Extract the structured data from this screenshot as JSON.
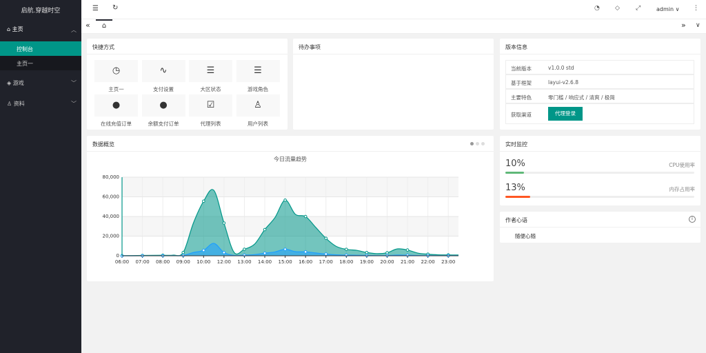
{
  "sidebar": {
    "logo": "启航.穿越时空",
    "menu": [
      {
        "label": "主页",
        "children": [
          "控制台",
          "主页一"
        ]
      },
      {
        "label": "游戏"
      },
      {
        "label": "资料"
      }
    ]
  },
  "header": {
    "user": "admin"
  },
  "quick": {
    "title": "快捷方式",
    "items": [
      "主页一",
      "支付设置",
      "大区状态",
      "游戏角色",
      "在线充值订单",
      "余额支付订单",
      "代理列表",
      "用户列表"
    ]
  },
  "todo": {
    "title": "待办事项"
  },
  "version": {
    "title": "版本信息",
    "rows": [
      [
        "当前版本",
        "v1.0.0 std"
      ],
      [
        "基于框架",
        "layui-v2.6.8"
      ],
      [
        "主要特色",
        "零门槛 / 响应式 / 清爽 / 极简"
      ],
      [
        "获取渠道"
      ]
    ],
    "button": "代理登录"
  },
  "overview": {
    "title": "数据概览"
  },
  "monitor": {
    "title": "实时监控",
    "lim": [
      0,
      100
    ],
    "items": [
      {
        "value": 10,
        "label": "10%",
        "name": "CPU使用率",
        "color": "#5fb878"
      },
      {
        "value": 13,
        "label": "13%",
        "name": "内存占用率",
        "color": "#ff5722"
      }
    ]
  },
  "author": {
    "title": "作者心语",
    "text": "随便心随"
  },
  "chart_data": {
    "type": "area",
    "title": "今日流量趋势",
    "categories": [
      "06:00",
      null,
      "07:00",
      null,
      "08:00",
      null,
      "09:00",
      null,
      "10:00",
      null,
      "12:00",
      null,
      "13:00",
      null,
      "14:00",
      null,
      "15:00",
      null,
      "16:00",
      null,
      "17:00",
      null,
      "18:00",
      null,
      "19:00",
      null,
      "20:00",
      null,
      "21:00",
      null,
      "22:00",
      null,
      "23:00",
      null
    ],
    "series": [
      {
        "color": "#009688",
        "values": [
          111,
          222,
          333,
          444,
          555,
          666,
          3333,
          33333,
          55555,
          66666,
          33333,
          3333,
          6666,
          11888,
          26666,
          38888,
          56666,
          42222,
          39999,
          28888,
          17777,
          9666,
          6555,
          5555,
          3333,
          2222,
          3111,
          6999,
          5888,
          2777,
          1666,
          999,
          888,
          777
        ]
      },
      {
        "color": "#1e9fff",
        "values": [
          11,
          22,
          33,
          44,
          55,
          66,
          333,
          3333,
          5555,
          12666,
          3333,
          333,
          666,
          1188,
          2666,
          3888,
          6666,
          4222,
          3999,
          2888,
          1777,
          966,
          655,
          555,
          333,
          222,
          311,
          699,
          588,
          277,
          166,
          99,
          88,
          77
        ]
      }
    ],
    "ylim": [
      0,
      80000
    ],
    "yticks": [
      0,
      {
        "value": 20000,
        "label": "20,000"
      },
      {
        "value": 40000,
        "label": "40,000"
      },
      {
        "value": 60000,
        "label": "60,000"
      },
      {
        "value": 80000,
        "label": "80,000"
      }
    ],
    "grid": true
  }
}
